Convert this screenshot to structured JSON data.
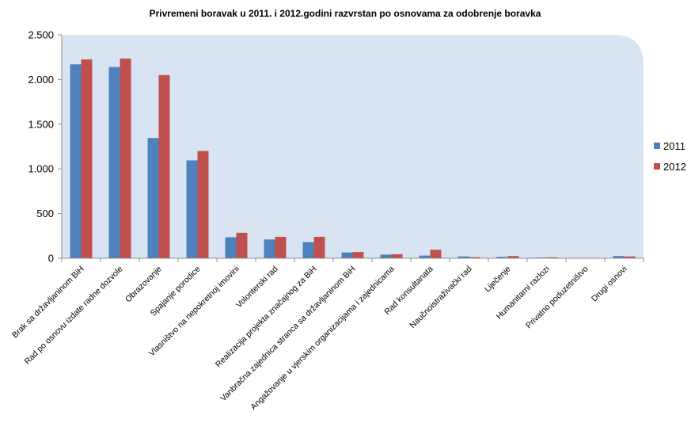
{
  "chart_data": {
    "type": "bar",
    "title": "Privremeni boravak u 2011. i 2012.godini razvrstan po osnovama za odobrenje boravka",
    "xlabel": "",
    "ylabel": "",
    "categories": [
      "Brak sa državljaninom BiH",
      "Rad po osnovu izdate radne dozvole",
      "Obrazovanje",
      "Spajanje porodice",
      "Vlasništvo na nepokretnoj imovini",
      "Volonterski rad",
      "Realizacija projekta značajnog za BiH",
      "Vanbračna zajednica stranca sa državljaninom BiH",
      "Angažovanje u vjerskim organizacijama i zajednicama",
      "Rad konsultanata",
      "Naučnoistraživački rad",
      "Liječenje",
      "Humanitarni razlozi",
      "Privatno poduzetništvo",
      "Drugi osnovi"
    ],
    "series": [
      {
        "name": "2011",
        "color": "#4F81BD",
        "values": [
          2170,
          2140,
          1345,
          1095,
          235,
          210,
          180,
          65,
          40,
          30,
          20,
          15,
          8,
          2,
          25
        ]
      },
      {
        "name": "2012",
        "color": "#C0504D",
        "values": [
          2225,
          2235,
          2050,
          1200,
          285,
          240,
          240,
          70,
          45,
          95,
          12,
          25,
          10,
          3,
          20
        ]
      }
    ],
    "ylim": [
      0,
      2500
    ],
    "yticks": [
      0,
      500,
      1000,
      1500,
      2000,
      2500
    ],
    "ytick_labels": [
      "0",
      "500",
      "1.000",
      "1.500",
      "2.000",
      "2.500"
    ],
    "grid": false,
    "legend": "right",
    "plot_background": "#D8E4F1"
  }
}
